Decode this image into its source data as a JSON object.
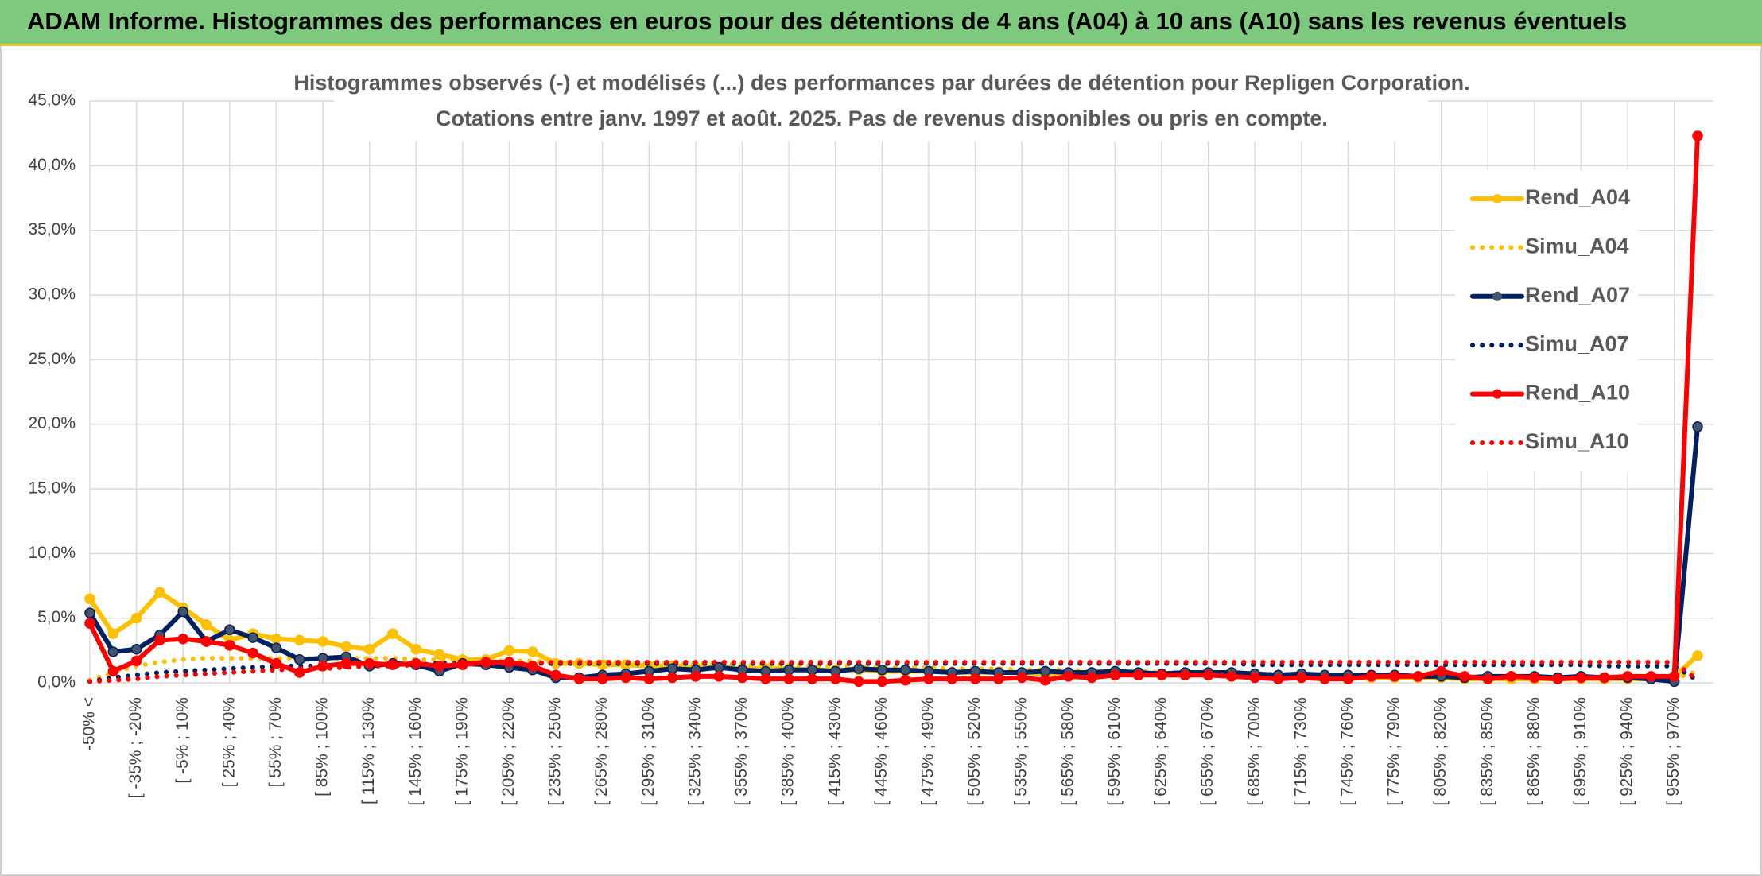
{
  "chart_data": {
    "type": "line",
    "title": "ADAM Informe. Histogrammes des performances en euros pour des détentions de 4 ans (A04) à 10 ans (A10) sans les revenus éventuels",
    "subtitle": [
      "Histogrammes observés (-) et modélisés (...) des performances par durées de détention pour Repligen Corporation.",
      "Cotations entre janv. 1997 et août. 2025. Pas de revenus disponibles ou pris en compte."
    ],
    "categories": [
      "-50% <",
      null,
      "[ -35% ; -20%",
      null,
      "[ -5% ; 10%",
      null,
      "[ 25% ; 40%",
      null,
      "[ 55% ; 70%",
      null,
      "[ 85% ; 100%",
      null,
      "[ 115% ; 130%",
      null,
      "[ 145% ; 160%",
      null,
      "[ 175% ; 190%",
      null,
      "[ 205% ; 220%",
      null,
      "[ 235% ; 250%",
      null,
      "[ 265% ; 280%",
      null,
      "[ 295% ; 310%",
      null,
      "[ 325% ; 340%",
      null,
      "[ 355% ; 370%",
      null,
      "[ 385% ; 400%",
      null,
      "[ 415% ; 430%",
      null,
      "[ 445% ; 460%",
      null,
      "[ 475% ; 490%",
      null,
      "[ 505% ; 520%",
      null,
      "[ 535% ; 550%",
      null,
      "[ 565% ; 580%",
      null,
      "[ 595% ; 610%",
      null,
      "[ 625% ; 640%",
      null,
      "[ 655% ; 670%",
      null,
      "[ 685% ; 700%",
      null,
      "[ 715% ; 730%",
      null,
      "[ 745% ; 760%",
      null,
      "[ 775% ; 790%",
      null,
      "[ 805% ; 820%",
      null,
      "[ 835% ; 850%",
      null,
      "[ 865% ; 880%",
      null,
      "[ 895% ; 910%",
      null,
      "[ 925% ; 940%",
      null,
      "[ 955% ; 970%",
      null
    ],
    "series": [
      {
        "name": "Rend_A04",
        "color": "#FFC000",
        "style": "solid",
        "values": [
          6.5,
          3.8,
          5.0,
          7.0,
          5.8,
          4.5,
          3.3,
          3.8,
          3.4,
          3.3,
          3.2,
          2.8,
          2.6,
          3.8,
          2.6,
          2.2,
          1.8,
          1.8,
          2.5,
          2.4,
          1.5,
          1.5,
          1.4,
          1.4,
          1.3,
          1.3,
          1.2,
          1.2,
          1.1,
          1.1,
          1.1,
          1.0,
          1.0,
          1.0,
          0.9,
          0.9,
          0.9,
          0.8,
          0.8,
          0.8,
          0.8,
          0.7,
          0.7,
          0.7,
          0.7,
          0.6,
          0.6,
          0.6,
          0.6,
          0.5,
          0.5,
          0.5,
          0.5,
          0.5,
          0.4,
          0.4,
          0.4,
          0.4,
          0.4,
          0.3,
          0.3,
          0.3,
          0.3,
          0.3,
          0.3,
          0.3,
          0.3,
          0.3,
          0.5,
          2.1
        ]
      },
      {
        "name": "Simu_A04",
        "color": "#FFC000",
        "style": "dotted",
        "values": [
          0.2,
          0.8,
          1.3,
          1.6,
          1.8,
          1.9,
          1.9,
          1.9,
          1.9,
          1.9,
          1.9,
          1.9,
          1.9,
          1.9,
          1.8,
          1.8,
          1.8,
          1.7,
          1.7,
          1.7,
          1.6,
          1.6,
          1.6,
          1.6,
          1.5,
          1.5,
          1.5,
          1.5,
          1.4,
          1.4,
          1.4,
          1.3,
          1.3,
          1.3,
          1.2,
          1.2,
          1.2,
          1.1,
          1.1,
          1.1,
          1.0,
          1.0,
          1.0,
          0.9,
          0.9,
          0.9,
          0.8,
          0.8,
          0.8,
          0.7,
          0.7,
          0.7,
          0.6,
          0.6,
          0.6,
          0.6,
          0.5,
          0.5,
          0.5,
          0.5,
          0.4,
          0.4,
          0.4,
          0.4,
          0.4,
          0.3,
          0.3,
          0.3,
          0.3,
          0.9
        ]
      },
      {
        "name": "Rend_A07",
        "color": "#002060",
        "style": "solid",
        "values": [
          5.4,
          2.4,
          2.6,
          3.7,
          5.5,
          3.2,
          4.1,
          3.5,
          2.7,
          1.8,
          1.9,
          2.0,
          1.3,
          1.5,
          1.4,
          0.9,
          1.5,
          1.4,
          1.2,
          1.0,
          0.4,
          0.4,
          0.6,
          0.7,
          0.9,
          1.1,
          1.0,
          1.2,
          1.0,
          0.9,
          1.0,
          1.0,
          0.9,
          1.1,
          1.0,
          1.0,
          0.9,
          0.8,
          0.9,
          0.8,
          0.8,
          0.9,
          0.8,
          0.8,
          0.9,
          0.8,
          0.7,
          0.8,
          0.8,
          0.8,
          0.7,
          0.6,
          0.7,
          0.6,
          0.6,
          0.6,
          0.6,
          0.5,
          0.5,
          0.4,
          0.5,
          0.5,
          0.5,
          0.4,
          0.5,
          0.4,
          0.4,
          0.3,
          0.1,
          19.8
        ]
      },
      {
        "name": "Simu_A07",
        "color": "#002060",
        "style": "dotted",
        "values": [
          0.1,
          0.4,
          0.6,
          0.8,
          0.9,
          1.0,
          1.1,
          1.2,
          1.3,
          1.3,
          1.3,
          1.4,
          1.4,
          1.4,
          1.4,
          1.5,
          1.5,
          1.5,
          1.5,
          1.5,
          1.5,
          1.5,
          1.5,
          1.5,
          1.5,
          1.5,
          1.5,
          1.5,
          1.5,
          1.5,
          1.5,
          1.5,
          1.5,
          1.5,
          1.5,
          1.5,
          1.5,
          1.5,
          1.5,
          1.5,
          1.5,
          1.5,
          1.5,
          1.5,
          1.5,
          1.5,
          1.5,
          1.5,
          1.5,
          1.5,
          1.4,
          1.4,
          1.4,
          1.4,
          1.4,
          1.4,
          1.4,
          1.4,
          1.4,
          1.4,
          1.4,
          1.4,
          1.4,
          1.4,
          1.4,
          1.3,
          1.3,
          1.3,
          1.3,
          0.2
        ]
      },
      {
        "name": "Rend_A10",
        "color": "#FF0000",
        "style": "solid",
        "values": [
          4.6,
          0.9,
          1.7,
          3.3,
          3.4,
          3.2,
          2.9,
          2.3,
          1.5,
          0.8,
          1.3,
          1.5,
          1.5,
          1.4,
          1.5,
          1.3,
          1.4,
          1.6,
          1.6,
          1.3,
          0.6,
          0.3,
          0.3,
          0.4,
          0.3,
          0.4,
          0.5,
          0.5,
          0.4,
          0.3,
          0.3,
          0.3,
          0.3,
          0.1,
          0.1,
          0.2,
          0.3,
          0.3,
          0.3,
          0.3,
          0.4,
          0.2,
          0.5,
          0.4,
          0.6,
          0.6,
          0.6,
          0.6,
          0.6,
          0.5,
          0.4,
          0.3,
          0.4,
          0.3,
          0.3,
          0.5,
          0.5,
          0.5,
          0.9,
          0.5,
          0.3,
          0.5,
          0.4,
          0.3,
          0.4,
          0.4,
          0.5,
          0.5,
          0.5,
          42.3
        ]
      },
      {
        "name": "Simu_A10",
        "color": "#FF0000",
        "style": "dotted",
        "values": [
          0.1,
          0.2,
          0.3,
          0.5,
          0.6,
          0.7,
          0.8,
          0.9,
          1.0,
          1.1,
          1.1,
          1.2,
          1.3,
          1.3,
          1.4,
          1.4,
          1.5,
          1.5,
          1.5,
          1.5,
          1.6,
          1.6,
          1.6,
          1.6,
          1.6,
          1.6,
          1.6,
          1.6,
          1.6,
          1.6,
          1.6,
          1.6,
          1.6,
          1.6,
          1.6,
          1.6,
          1.6,
          1.6,
          1.6,
          1.6,
          1.6,
          1.6,
          1.6,
          1.6,
          1.6,
          1.6,
          1.6,
          1.6,
          1.6,
          1.6,
          1.6,
          1.6,
          1.6,
          1.6,
          1.6,
          1.6,
          1.6,
          1.6,
          1.6,
          1.6,
          1.6,
          1.6,
          1.6,
          1.6,
          1.6,
          1.6,
          1.6,
          1.6,
          1.6,
          0.2
        ]
      }
    ],
    "ylim": [
      0,
      45
    ],
    "yticks": [
      {
        "value": 0,
        "label": "0,0%"
      },
      {
        "value": 5,
        "label": "5,0%"
      },
      {
        "value": 10,
        "label": "10,0%"
      },
      {
        "value": 15,
        "label": "15,0%"
      },
      {
        "value": 20,
        "label": "20,0%"
      },
      {
        "value": 25,
        "label": "25,0%"
      },
      {
        "value": 30,
        "label": "30,0%"
      },
      {
        "value": 35,
        "label": "35,0%"
      },
      {
        "value": 40,
        "label": "40,0%"
      },
      {
        "value": 45,
        "label": "45,0%"
      }
    ],
    "grid": true,
    "legend": "right"
  }
}
